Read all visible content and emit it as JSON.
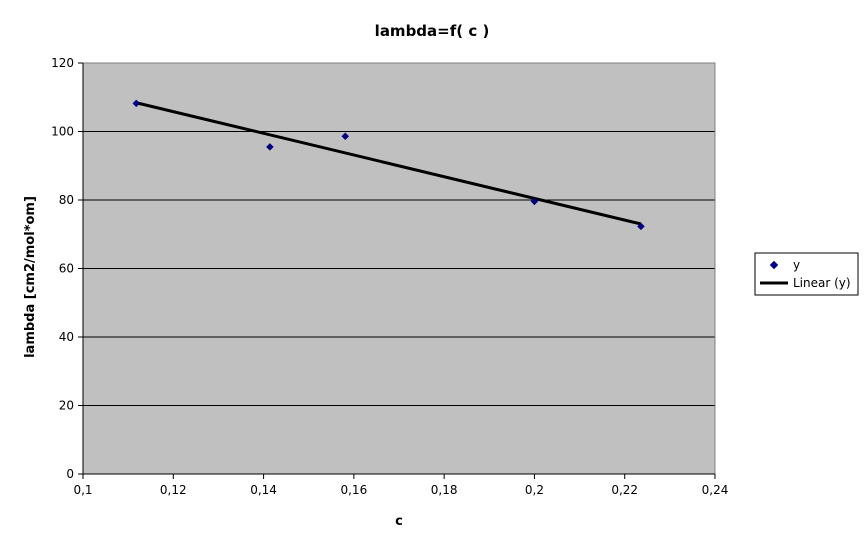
{
  "chart_data": {
    "type": "scatter",
    "title": "lambda=f( c )",
    "xlabel": "c",
    "ylabel": "lambda [cm2/mol*om]",
    "xlim": [
      0.1,
      0.24
    ],
    "ylim": [
      0,
      120
    ],
    "x_ticks": [
      0.1,
      0.12,
      0.14,
      0.16,
      0.18,
      0.2,
      0.22,
      0.24
    ],
    "x_tick_labels": [
      "0,1",
      "0,12",
      "0,14",
      "0,16",
      "0,18",
      "0,2",
      "0,22",
      "0,24"
    ],
    "y_ticks": [
      0,
      20,
      40,
      60,
      80,
      100,
      120
    ],
    "y_tick_labels": [
      "0",
      "20",
      "40",
      "60",
      "80",
      "100",
      "120"
    ],
    "grid": "horizontal",
    "legend_position": "right",
    "plot_background": "#c0c0c0",
    "series": [
      {
        "name": "y",
        "kind": "scatter",
        "marker": "diamond",
        "color": "#000080",
        "x": [
          0.1118,
          0.1414,
          0.1581,
          0.2,
          0.2236
        ],
        "y": [
          108.2,
          95.5,
          98.6,
          79.6,
          72.3
        ]
      },
      {
        "name": "Linear (y)",
        "kind": "line",
        "color": "#000000",
        "x": [
          0.1118,
          0.2236
        ],
        "y": [
          108.4,
          73.0
        ]
      }
    ]
  }
}
